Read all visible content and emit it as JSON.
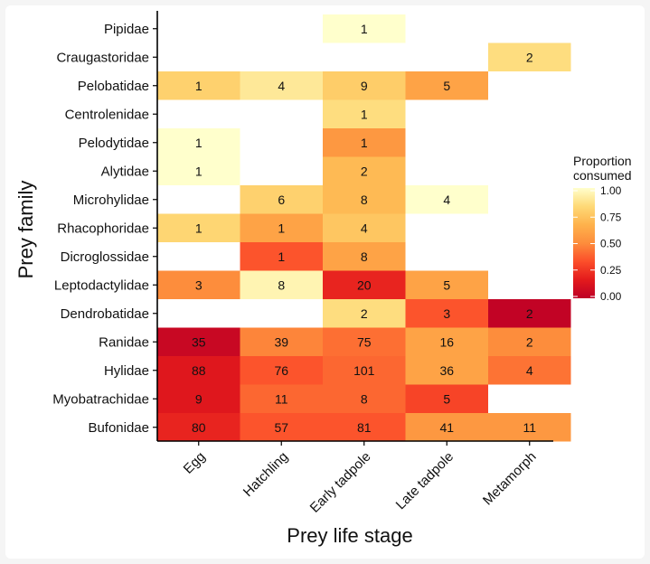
{
  "chart_data": {
    "type": "heatmap",
    "xlabel": "Prey life stage",
    "ylabel": "Prey family",
    "x_categories": [
      "Egg",
      "Hatchling",
      "Early tadpole",
      "Late tadpole",
      "Metamorph"
    ],
    "y_categories": [
      "Pipidae",
      "Craugastoridae",
      "Pelobatidae",
      "Centrolenidae",
      "Pelodytidae",
      "Alytidae",
      "Microhylidae",
      "Rhacophoridae",
      "Dicroglossidae",
      "Leptodactylidae",
      "Dendrobatidae",
      "Ranidae",
      "Hylidae",
      "Myobatrachidae",
      "Bufonidae"
    ],
    "cells": [
      {
        "family": "Pipidae",
        "stage": "Early tadpole",
        "count": 1,
        "proportion": 1.0
      },
      {
        "family": "Craugastoridae",
        "stage": "Metamorph",
        "count": 2,
        "proportion": 0.85
      },
      {
        "family": "Pelobatidae",
        "stage": "Egg",
        "count": 1,
        "proportion": 0.8
      },
      {
        "family": "Pelobatidae",
        "stage": "Hatchling",
        "count": 4,
        "proportion": 0.9
      },
      {
        "family": "Pelobatidae",
        "stage": "Early tadpole",
        "count": 9,
        "proportion": 0.78
      },
      {
        "family": "Pelobatidae",
        "stage": "Late tadpole",
        "count": 5,
        "proportion": 0.6
      },
      {
        "family": "Centrolenidae",
        "stage": "Early tadpole",
        "count": 1,
        "proportion": 0.85
      },
      {
        "family": "Pelodytidae",
        "stage": "Egg",
        "count": 1,
        "proportion": 1.0
      },
      {
        "family": "Pelodytidae",
        "stage": "Early tadpole",
        "count": 1,
        "proportion": 0.55
      },
      {
        "family": "Alytidae",
        "stage": "Egg",
        "count": 1,
        "proportion": 1.0
      },
      {
        "family": "Alytidae",
        "stage": "Early tadpole",
        "count": 2,
        "proportion": 0.7
      },
      {
        "family": "Microhylidae",
        "stage": "Hatchling",
        "count": 6,
        "proportion": 0.8
      },
      {
        "family": "Microhylidae",
        "stage": "Early tadpole",
        "count": 8,
        "proportion": 0.7
      },
      {
        "family": "Microhylidae",
        "stage": "Late tadpole",
        "count": 4,
        "proportion": 1.0
      },
      {
        "family": "Rhacophoridae",
        "stage": "Egg",
        "count": 1,
        "proportion": 0.82
      },
      {
        "family": "Rhacophoridae",
        "stage": "Hatchling",
        "count": 1,
        "proportion": 0.6
      },
      {
        "family": "Rhacophoridae",
        "stage": "Early tadpole",
        "count": 4,
        "proportion": 0.75
      },
      {
        "family": "Dicroglossidae",
        "stage": "Hatchling",
        "count": 1,
        "proportion": 0.35
      },
      {
        "family": "Dicroglossidae",
        "stage": "Early tadpole",
        "count": 8,
        "proportion": 0.6
      },
      {
        "family": "Leptodactylidae",
        "stage": "Egg",
        "count": 3,
        "proportion": 0.5
      },
      {
        "family": "Leptodactylidae",
        "stage": "Hatchling",
        "count": 8,
        "proportion": 0.95
      },
      {
        "family": "Leptodactylidae",
        "stage": "Early tadpole",
        "count": 20,
        "proportion": 0.2
      },
      {
        "family": "Leptodactylidae",
        "stage": "Late tadpole",
        "count": 5,
        "proportion": 0.6
      },
      {
        "family": "Dendrobatidae",
        "stage": "Early tadpole",
        "count": 2,
        "proportion": 0.85
      },
      {
        "family": "Dendrobatidae",
        "stage": "Late tadpole",
        "count": 3,
        "proportion": 0.35
      },
      {
        "family": "Dendrobatidae",
        "stage": "Metamorph",
        "count": 2,
        "proportion": 0.02
      },
      {
        "family": "Ranidae",
        "stage": "Egg",
        "count": 35,
        "proportion": 0.05
      },
      {
        "family": "Ranidae",
        "stage": "Hatchling",
        "count": 39,
        "proportion": 0.48
      },
      {
        "family": "Ranidae",
        "stage": "Early tadpole",
        "count": 75,
        "proportion": 0.42
      },
      {
        "family": "Ranidae",
        "stage": "Late tadpole",
        "count": 16,
        "proportion": 0.6
      },
      {
        "family": "Ranidae",
        "stage": "Metamorph",
        "count": 2,
        "proportion": 0.5
      },
      {
        "family": "Hylidae",
        "stage": "Egg",
        "count": 88,
        "proportion": 0.15
      },
      {
        "family": "Hylidae",
        "stage": "Hatchling",
        "count": 76,
        "proportion": 0.35
      },
      {
        "family": "Hylidae",
        "stage": "Early tadpole",
        "count": 101,
        "proportion": 0.4
      },
      {
        "family": "Hylidae",
        "stage": "Late tadpole",
        "count": 36,
        "proportion": 0.6
      },
      {
        "family": "Hylidae",
        "stage": "Metamorph",
        "count": 4,
        "proportion": 0.43
      },
      {
        "family": "Myobatrachidae",
        "stage": "Egg",
        "count": 9,
        "proportion": 0.15
      },
      {
        "family": "Myobatrachidae",
        "stage": "Hatchling",
        "count": 11,
        "proportion": 0.4
      },
      {
        "family": "Myobatrachidae",
        "stage": "Early tadpole",
        "count": 8,
        "proportion": 0.4
      },
      {
        "family": "Myobatrachidae",
        "stage": "Late tadpole",
        "count": 5,
        "proportion": 0.3
      },
      {
        "family": "Bufonidae",
        "stage": "Egg",
        "count": 80,
        "proportion": 0.2
      },
      {
        "family": "Bufonidae",
        "stage": "Hatchling",
        "count": 57,
        "proportion": 0.35
      },
      {
        "family": "Bufonidae",
        "stage": "Early tadpole",
        "count": 81,
        "proportion": 0.35
      },
      {
        "family": "Bufonidae",
        "stage": "Late tadpole",
        "count": 41,
        "proportion": 0.55
      },
      {
        "family": "Bufonidae",
        "stage": "Metamorph",
        "count": 11,
        "proportion": 0.55
      }
    ],
    "legend": {
      "title_lines": [
        "Proportion",
        "consumed"
      ],
      "ticks": [
        "1.00",
        "0.75",
        "0.50",
        "0.25",
        "0.00"
      ],
      "tick_values": [
        1.0,
        0.75,
        0.5,
        0.25,
        0.0
      ],
      "placement": "right"
    },
    "colorscale": [
      "#bd0026",
      "#e31a1c",
      "#fc4e2a",
      "#fd8d3c",
      "#feb24c",
      "#fed976",
      "#ffffcc"
    ],
    "grid": false
  }
}
